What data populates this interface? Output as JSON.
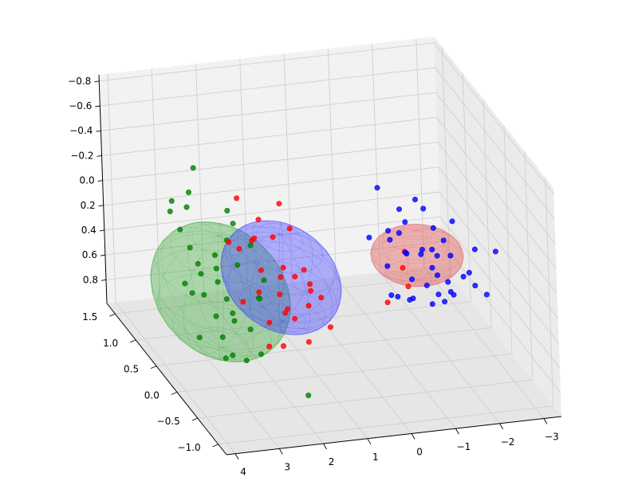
{
  "chart_data": {
    "type": "scatter",
    "projection": "3d",
    "grid": true,
    "axes": {
      "x": {
        "ticks": [
          -3,
          -2,
          -1,
          0,
          1,
          2,
          3,
          4
        ],
        "tick_labels": [
          "−3",
          "−2",
          "−1",
          "0",
          "1",
          "2",
          "3",
          "4"
        ],
        "range": [
          -3.4,
          4.2
        ]
      },
      "y": {
        "ticks": [
          -1.0,
          -0.5,
          0.0,
          0.5,
          1.0,
          1.5
        ],
        "tick_labels": [
          "−1.0",
          "−0.5",
          "0.0",
          "0.5",
          "1.0",
          "1.5"
        ],
        "range": [
          -1.2,
          1.7
        ]
      },
      "z": {
        "ticks": [
          -0.8,
          -0.6,
          -0.4,
          -0.2,
          0.0,
          0.2,
          0.4,
          0.6,
          0.8
        ],
        "tick_labels": [
          "−0.8",
          "−0.6",
          "−0.4",
          "−0.2",
          "0.0",
          "0.2",
          "0.4",
          "0.6",
          "0.8"
        ],
        "range": [
          -0.85,
          0.99
        ],
        "inverted": true
      }
    },
    "ellipsoids": [
      {
        "color": "#2ca02c",
        "opacity": 0.35,
        "center": [
          2.6,
          0.6,
          0.5
        ],
        "semi_axes": [
          1.4,
          0.8,
          0.45
        ]
      },
      {
        "color": "#3a3aff",
        "opacity": 0.38,
        "center": [
          1.4,
          0.4,
          0.35
        ],
        "semi_axes": [
          1.2,
          0.7,
          0.35
        ]
      },
      {
        "color": "#e06060",
        "opacity": 0.45,
        "center": [
          -1.6,
          0.3,
          0.25
        ],
        "semi_axes": [
          1.0,
          0.35,
          0.2
        ]
      }
    ],
    "series": [
      {
        "color": "#008000",
        "points": [
          [
            3.2,
            0.9,
            0.1
          ],
          [
            3.0,
            0.7,
            0.3
          ],
          [
            2.8,
            1.1,
            -0.1
          ],
          [
            2.5,
            0.8,
            0.4
          ],
          [
            2.9,
            0.4,
            0.6
          ],
          [
            3.3,
            0.3,
            0.2
          ],
          [
            2.4,
            0.5,
            0.7
          ],
          [
            2.7,
            0.2,
            0.5
          ],
          [
            3.1,
            1.2,
            0.0
          ],
          [
            2.2,
            0.6,
            0.3
          ],
          [
            2.6,
            0.0,
            0.8
          ],
          [
            2.0,
            0.9,
            0.1
          ],
          [
            3.4,
            0.6,
            0.4
          ],
          [
            2.3,
            1.0,
            0.6
          ],
          [
            2.8,
            0.3,
            0.9
          ],
          [
            1.9,
            0.4,
            0.5
          ],
          [
            3.0,
            -0.1,
            0.7
          ],
          [
            2.5,
            1.3,
            -0.2
          ],
          [
            2.1,
            0.2,
            0.4
          ],
          [
            3.5,
            0.8,
            -0.1
          ],
          [
            2.7,
            0.6,
            0.2
          ],
          [
            2.4,
            0.1,
            0.6
          ],
          [
            3.2,
            0.5,
            0.8
          ],
          [
            2.9,
            1.0,
            0.3
          ],
          [
            1.8,
            0.7,
            0.2
          ],
          [
            2.6,
            0.4,
            0.0
          ],
          [
            3.3,
            -0.2,
            0.5
          ],
          [
            2.2,
            0.9,
            0.7
          ],
          [
            2.0,
            0.3,
            0.9
          ],
          [
            2.8,
            0.8,
            0.6
          ],
          [
            1.7,
            0.5,
            0.4
          ],
          [
            3.6,
            0.2,
            0.3
          ],
          [
            2.3,
            0.7,
            -0.1
          ],
          [
            1.5,
            -0.3,
            1.0
          ],
          [
            2.5,
            1.5,
            0.2
          ]
        ]
      },
      {
        "color": "#ff0000",
        "points": [
          [
            1.8,
            0.6,
            0.1
          ],
          [
            1.5,
            0.3,
            0.3
          ],
          [
            1.2,
            0.8,
            0.2
          ],
          [
            1.6,
            0.1,
            0.5
          ],
          [
            1.0,
            0.5,
            0.4
          ],
          [
            1.9,
            0.9,
            -0.1
          ],
          [
            1.3,
            0.2,
            0.6
          ],
          [
            0.9,
            0.7,
            0.1
          ],
          [
            1.7,
            0.4,
            0.7
          ],
          [
            1.1,
            0.0,
            0.3
          ],
          [
            2.0,
            0.3,
            0.4
          ],
          [
            1.4,
            0.9,
            0.5
          ],
          [
            0.8,
            0.4,
            0.6
          ],
          [
            1.6,
            0.7,
            0.0
          ],
          [
            1.2,
            -0.1,
            0.2
          ],
          [
            2.1,
            0.6,
            0.6
          ],
          [
            1.0,
            0.2,
            0.8
          ],
          [
            1.5,
            1.0,
            0.3
          ],
          [
            0.7,
            0.6,
            0.4
          ],
          [
            1.8,
            0.0,
            0.3
          ],
          [
            1.3,
            0.5,
            -0.2
          ],
          [
            1.9,
            0.2,
            0.8
          ],
          [
            0.9,
            0.9,
            0.5
          ],
          [
            1.4,
            0.4,
            0.9
          ],
          [
            2.2,
            0.8,
            0.2
          ],
          [
            1.1,
            0.6,
            0.7
          ],
          [
            0.6,
            0.3,
            0.5
          ],
          [
            1.7,
            1.1,
            0.4
          ],
          [
            -1.2,
            0.1,
            0.4
          ],
          [
            -0.9,
            0.3,
            0.6
          ],
          [
            -1.5,
            0.5,
            0.3
          ],
          [
            -1.0,
            0.0,
            0.2
          ],
          [
            0.5,
            0.2,
            0.7
          ]
        ]
      },
      {
        "color": "#0000ff",
        "points": [
          [
            -1.3,
            0.4,
            0.1
          ],
          [
            -1.6,
            0.2,
            0.2
          ],
          [
            -1.9,
            0.5,
            0.3
          ],
          [
            -2.1,
            0.1,
            0.4
          ],
          [
            -1.5,
            0.6,
            0.0
          ],
          [
            -1.8,
            0.3,
            0.5
          ],
          [
            -2.3,
            0.4,
            0.2
          ],
          [
            -1.2,
            0.0,
            0.3
          ],
          [
            -1.7,
            0.7,
            0.4
          ],
          [
            -2.0,
            -0.1,
            0.1
          ],
          [
            -1.4,
            0.3,
            0.6
          ],
          [
            -2.2,
            0.6,
            0.5
          ],
          [
            -1.6,
            -0.2,
            0.2
          ],
          [
            -1.9,
            0.2,
            0.0
          ],
          [
            -2.4,
            0.3,
            0.6
          ],
          [
            -1.1,
            0.5,
            0.4
          ],
          [
            -2.5,
            0.0,
            0.3
          ],
          [
            -1.8,
            0.8,
            0.2
          ],
          [
            -1.3,
            0.1,
            0.5
          ],
          [
            -2.0,
            0.4,
            0.7
          ],
          [
            -1.7,
            -0.1,
            0.4
          ],
          [
            -2.6,
            0.5,
            0.1
          ],
          [
            -1.5,
            0.9,
            0.3
          ],
          [
            -2.1,
            0.2,
            0.6
          ],
          [
            -1.0,
            0.3,
            0.1
          ],
          [
            -2.3,
            0.7,
            0.4
          ],
          [
            -1.4,
            0.6,
            0.7
          ],
          [
            -2.8,
            0.2,
            0.5
          ],
          [
            -1.9,
            0.9,
            0.5
          ],
          [
            -2.7,
            -0.2,
            0.4
          ],
          [
            -1.2,
            0.8,
            -0.1
          ],
          [
            -3.0,
            0.4,
            0.3
          ],
          [
            -1.6,
            0.3,
            -0.2
          ],
          [
            -2.4,
            1.0,
            0.2
          ],
          [
            -2.9,
            0.6,
            0.6
          ],
          [
            -0.9,
            0.2,
            0.5
          ],
          [
            -2.5,
            0.8,
            0.5
          ],
          [
            -1.8,
            -0.3,
            0.3
          ],
          [
            -3.2,
            0.1,
            0.2
          ],
          [
            -0.8,
            0.6,
            0.2
          ]
        ]
      }
    ]
  }
}
